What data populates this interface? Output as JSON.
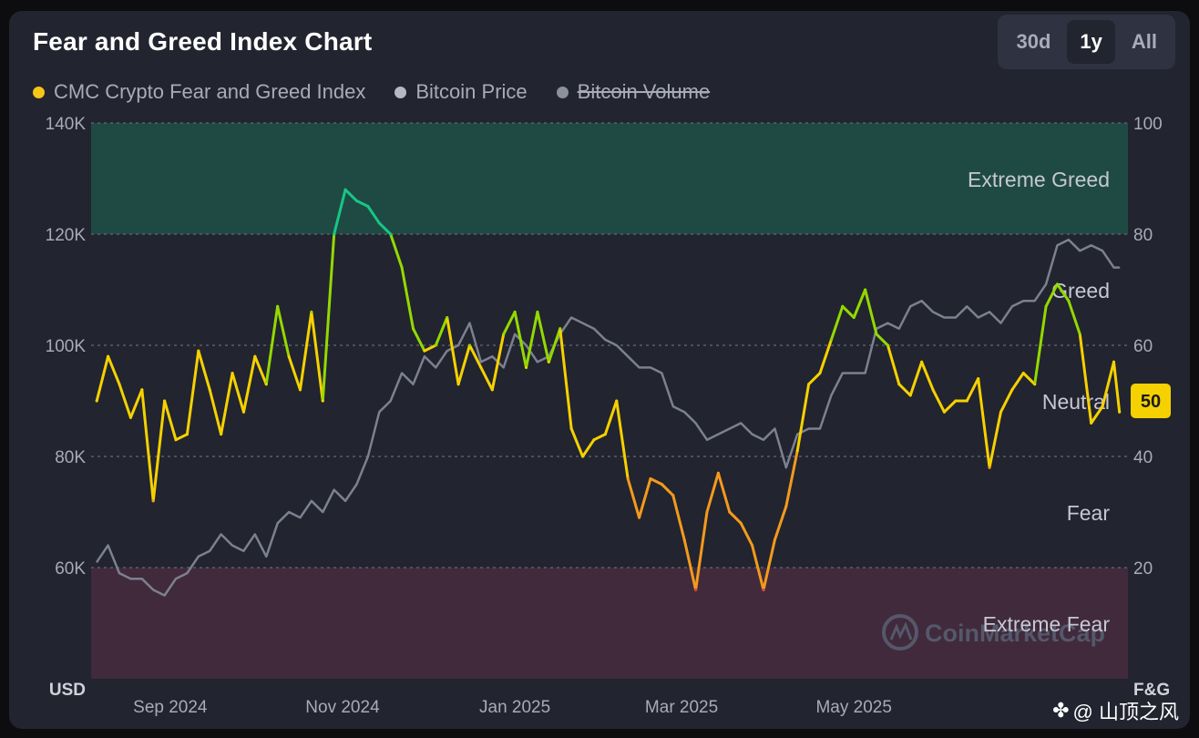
{
  "header": {
    "title": "Fear and Greed Index Chart",
    "ranges": [
      {
        "label": "30d",
        "active": false
      },
      {
        "label": "1y",
        "active": true
      },
      {
        "label": "All",
        "active": false
      }
    ]
  },
  "legend": [
    {
      "label": "CMC Crypto Fear and Greed Index",
      "color": "#f5c518",
      "enabled": true
    },
    {
      "label": "Bitcoin Price",
      "color": "#b5b8c5",
      "enabled": true
    },
    {
      "label": "Bitcoin Volume",
      "color": "#8c8f9c",
      "enabled": false
    }
  ],
  "watermark": "CoinMarketCap",
  "attribution": "@ 山顶之风",
  "colors": {
    "extreme_greed_zone": "#1f4a44",
    "extreme_fear_zone": "#402a3c",
    "bitcoin_price_line": "#7d8090",
    "fg_extreme_greed": "#16c784",
    "fg_greed": "#93d900",
    "fg_neutral": "#f5d100",
    "fg_fear": "#f39a1c",
    "fg_extreme_fear": "#ea3943"
  },
  "chart_data": {
    "type": "line",
    "title": "Fear and Greed Index Chart",
    "x_ticks": [
      "Sep 2024",
      "Nov 2024",
      "Jan 2025",
      "Mar 2025",
      "May 2025"
    ],
    "left_axis": {
      "unit": "USD",
      "ticks": [
        "140K",
        "120K",
        "100K",
        "80K",
        "60K"
      ],
      "range": [
        40000,
        140000
      ]
    },
    "right_axis": {
      "unit": "F&G",
      "ticks": [
        "100",
        "80",
        "60",
        "40",
        "20"
      ],
      "range": [
        0,
        100
      ]
    },
    "zones": [
      {
        "label": "Extreme Greed",
        "from": 80,
        "to": 100
      },
      {
        "label": "Greed",
        "from": 60,
        "to": 80
      },
      {
        "label": "Neutral",
        "from": 40,
        "to": 60
      },
      {
        "label": "Fear",
        "from": 20,
        "to": 40
      },
      {
        "label": "Extreme Fear",
        "from": 0,
        "to": 20
      }
    ],
    "current_value": "50",
    "series": [
      {
        "name": "CMC Crypto Fear and Greed Index",
        "axis": "right",
        "x": [
          "2024-08-06",
          "2024-08-10",
          "2024-08-14",
          "2024-08-18",
          "2024-08-22",
          "2024-08-26",
          "2024-08-30",
          "2024-09-03",
          "2024-09-07",
          "2024-09-11",
          "2024-09-15",
          "2024-09-19",
          "2024-09-23",
          "2024-09-27",
          "2024-10-01",
          "2024-10-05",
          "2024-10-09",
          "2024-10-13",
          "2024-10-17",
          "2024-10-21",
          "2024-10-25",
          "2024-10-29",
          "2024-11-02",
          "2024-11-06",
          "2024-11-10",
          "2024-11-14",
          "2024-11-18",
          "2024-11-22",
          "2024-11-26",
          "2024-11-30",
          "2024-12-04",
          "2024-12-08",
          "2024-12-12",
          "2024-12-16",
          "2024-12-20",
          "2024-12-24",
          "2024-12-28",
          "2025-01-01",
          "2025-01-05",
          "2025-01-09",
          "2025-01-13",
          "2025-01-17",
          "2025-01-21",
          "2025-01-25",
          "2025-01-29",
          "2025-02-02",
          "2025-02-06",
          "2025-02-10",
          "2025-02-14",
          "2025-02-18",
          "2025-02-22",
          "2025-02-26",
          "2025-03-02",
          "2025-03-06",
          "2025-03-10",
          "2025-03-14",
          "2025-03-18",
          "2025-03-22",
          "2025-03-26",
          "2025-03-30",
          "2025-04-03",
          "2025-04-07",
          "2025-04-11",
          "2025-04-15",
          "2025-04-19",
          "2025-04-23",
          "2025-04-27",
          "2025-05-01",
          "2025-05-05",
          "2025-05-09",
          "2025-05-13",
          "2025-05-17",
          "2025-05-21",
          "2025-05-25",
          "2025-05-29",
          "2025-06-02",
          "2025-06-06",
          "2025-06-10",
          "2025-06-14",
          "2025-06-18",
          "2025-06-22",
          "2025-06-26",
          "2025-06-30",
          "2025-07-04",
          "2025-07-08",
          "2025-07-12",
          "2025-07-16",
          "2025-07-20",
          "2025-07-24",
          "2025-07-28",
          "2025-08-01",
          "2025-08-03"
        ],
        "values": [
          50,
          58,
          53,
          47,
          52,
          32,
          50,
          43,
          44,
          59,
          52,
          44,
          55,
          48,
          58,
          53,
          67,
          58,
          52,
          66,
          50,
          80,
          88,
          86,
          85,
          82,
          80,
          74,
          63,
          59,
          60,
          65,
          53,
          60,
          56,
          52,
          62,
          66,
          56,
          66,
          57,
          63,
          45,
          40,
          43,
          44,
          50,
          36,
          29,
          36,
          35,
          33,
          25,
          16,
          30,
          37,
          30,
          28,
          24,
          16,
          25,
          31,
          41,
          53,
          55,
          61,
          67,
          65,
          70,
          62,
          60,
          53,
          51,
          57,
          52,
          48,
          50,
          50,
          54,
          38,
          48,
          52,
          55,
          53,
          67,
          71,
          68,
          62,
          46,
          49,
          57,
          48
        ]
      },
      {
        "name": "Bitcoin Price",
        "axis": "left",
        "x": [
          "2024-08-06",
          "2024-08-10",
          "2024-08-14",
          "2024-08-18",
          "2024-08-22",
          "2024-08-26",
          "2024-08-30",
          "2024-09-03",
          "2024-09-07",
          "2024-09-11",
          "2024-09-15",
          "2024-09-19",
          "2024-09-23",
          "2024-09-27",
          "2024-10-01",
          "2024-10-05",
          "2024-10-09",
          "2024-10-13",
          "2024-10-17",
          "2024-10-21",
          "2024-10-25",
          "2024-10-29",
          "2024-11-02",
          "2024-11-06",
          "2024-11-10",
          "2024-11-14",
          "2024-11-18",
          "2024-11-22",
          "2024-11-26",
          "2024-11-30",
          "2024-12-04",
          "2024-12-08",
          "2024-12-12",
          "2024-12-16",
          "2024-12-20",
          "2024-12-24",
          "2024-12-28",
          "2025-01-01",
          "2025-01-05",
          "2025-01-09",
          "2025-01-13",
          "2025-01-17",
          "2025-01-21",
          "2025-01-25",
          "2025-01-29",
          "2025-02-02",
          "2025-02-06",
          "2025-02-10",
          "2025-02-14",
          "2025-02-18",
          "2025-02-22",
          "2025-02-26",
          "2025-03-02",
          "2025-03-06",
          "2025-03-10",
          "2025-03-14",
          "2025-03-18",
          "2025-03-22",
          "2025-03-26",
          "2025-03-30",
          "2025-04-03",
          "2025-04-07",
          "2025-04-11",
          "2025-04-15",
          "2025-04-19",
          "2025-04-23",
          "2025-04-27",
          "2025-05-01",
          "2025-05-05",
          "2025-05-09",
          "2025-05-13",
          "2025-05-17",
          "2025-05-21",
          "2025-05-25",
          "2025-05-29",
          "2025-06-02",
          "2025-06-06",
          "2025-06-10",
          "2025-06-14",
          "2025-06-18",
          "2025-06-22",
          "2025-06-26",
          "2025-06-30",
          "2025-07-04",
          "2025-07-08",
          "2025-07-12",
          "2025-07-16",
          "2025-07-20",
          "2025-07-24",
          "2025-07-28",
          "2025-08-01",
          "2025-08-03"
        ],
        "values": [
          61000,
          64000,
          59000,
          58000,
          58000,
          56000,
          55000,
          58000,
          59000,
          62000,
          63000,
          66000,
          64000,
          63000,
          66000,
          62000,
          68000,
          70000,
          69000,
          72000,
          70000,
          74000,
          72000,
          75000,
          80000,
          88000,
          90000,
          95000,
          93000,
          98000,
          96000,
          99000,
          100000,
          104000,
          97000,
          98000,
          96000,
          102000,
          100000,
          97000,
          98000,
          102000,
          105000,
          104000,
          103000,
          101000,
          100000,
          98000,
          96000,
          96000,
          95000,
          89000,
          88000,
          86000,
          83000,
          84000,
          85000,
          86000,
          84000,
          83000,
          85000,
          78000,
          84000,
          85000,
          85000,
          91000,
          95000,
          95000,
          95000,
          103000,
          104000,
          103000,
          107000,
          108000,
          106000,
          105000,
          105000,
          107000,
          105000,
          106000,
          104000,
          107000,
          108000,
          108000,
          111000,
          118000,
          119000,
          117000,
          118000,
          117000,
          114000,
          114000
        ]
      }
    ]
  }
}
